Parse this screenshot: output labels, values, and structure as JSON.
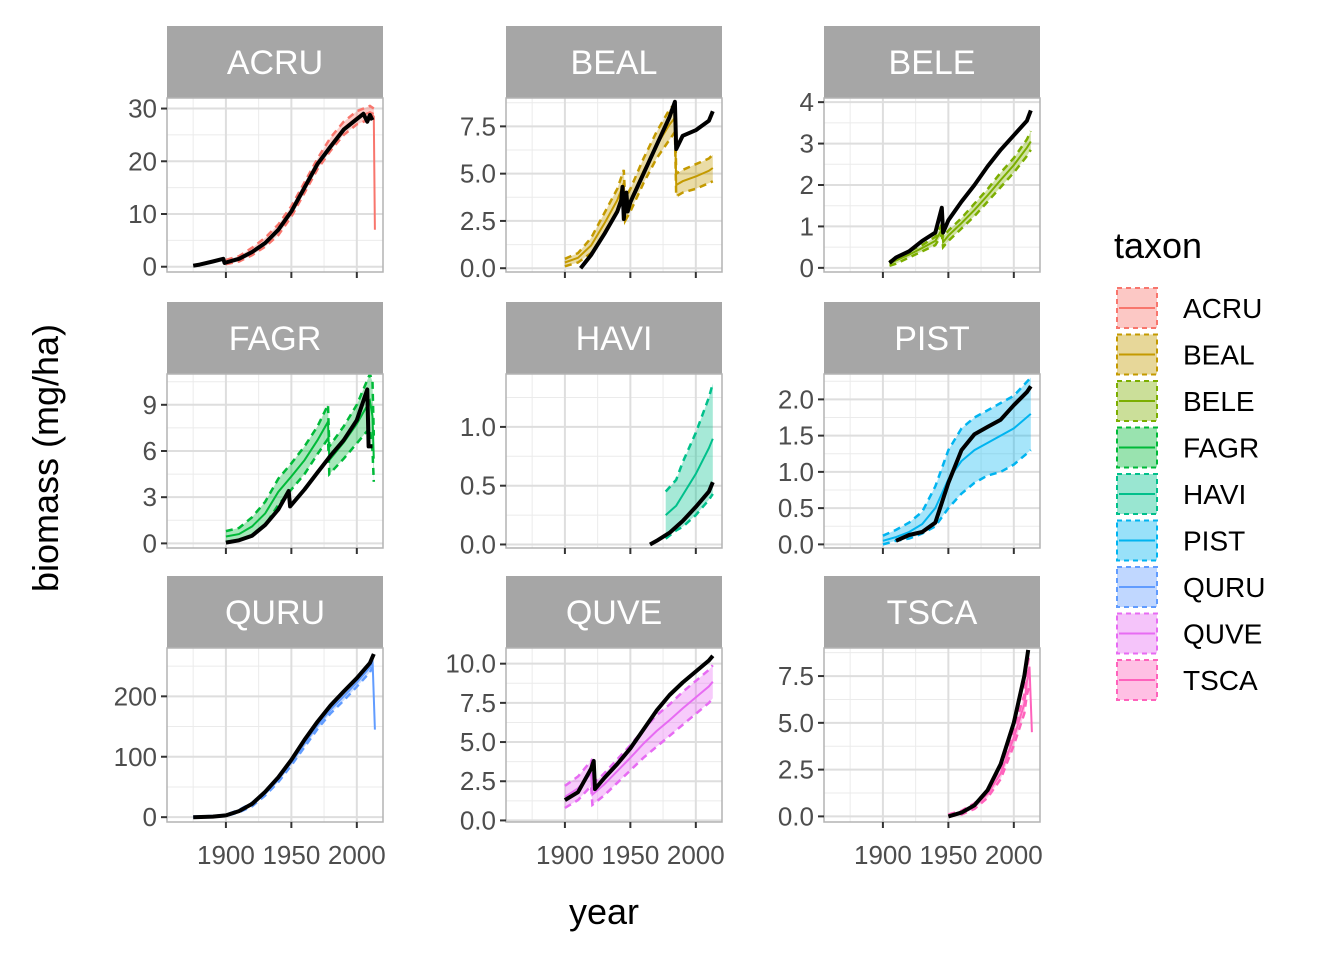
{
  "chart_data": {
    "type": "line",
    "xlabel": "year",
    "ylabel": "biomass (mg/ha)",
    "legend_title": "taxon",
    "legend_position": "right",
    "grid": true,
    "x_ticks": [
      1900,
      1950,
      2000
    ],
    "x_tick_labels": [
      "1900",
      "1950",
      "2000"
    ],
    "xlim": [
      1855,
      2020
    ],
    "panels": [
      {
        "taxon": "ACRU",
        "color": "#F8766D",
        "ylim": [
          -1,
          32
        ],
        "y_ticks": [
          0,
          10,
          20,
          30
        ],
        "y_tick_labels": [
          "0",
          "10",
          "20",
          "30"
        ],
        "ribbon": {
          "x": [
            1900,
            1910,
            1920,
            1930,
            1940,
            1950,
            1960,
            1970,
            1980,
            1990,
            2000,
            2010,
            2013
          ],
          "lower": [
            0.5,
            1.0,
            2.2,
            3.8,
            6.0,
            9.5,
            14.0,
            18.5,
            22.0,
            25.0,
            27.0,
            28.0,
            28.0
          ],
          "upper": [
            1.3,
            2.0,
            3.6,
            5.5,
            8.0,
            11.5,
            16.0,
            20.5,
            24.5,
            27.5,
            29.5,
            30.5,
            30.0
          ],
          "mean": [
            0.9,
            1.5,
            2.9,
            4.6,
            7.0,
            10.5,
            15.0,
            19.5,
            23.0,
            26.3,
            28.3,
            29.3,
            29.0
          ]
        },
        "tail": {
          "x": [
            2011,
            2013,
            2013.8
          ],
          "y": [
            29.0,
            28.5,
            7.0
          ]
        },
        "observed": {
          "x": [
            1875,
            1880,
            1890,
            1898,
            1899,
            1900,
            1910,
            1920,
            1930,
            1940,
            1950,
            1960,
            1970,
            1980,
            1990,
            2000,
            2005,
            2008,
            2010,
            2012
          ],
          "y": [
            0.2,
            0.4,
            1.0,
            1.5,
            0.7,
            0.8,
            1.5,
            2.8,
            4.5,
            7.0,
            10.5,
            15.0,
            19.5,
            22.8,
            26.0,
            28.0,
            29.0,
            27.5,
            28.8,
            27.8
          ]
        }
      },
      {
        "taxon": "BEAL",
        "color": "#C49A00",
        "ylim": [
          -0.2,
          9.0
        ],
        "y_ticks": [
          0.0,
          2.5,
          5.0,
          7.5
        ],
        "y_tick_labels": [
          "0.0",
          "2.5",
          "5.0",
          "7.5"
        ],
        "ribbon": {
          "x": [
            1900,
            1910,
            1920,
            1930,
            1940,
            1945,
            1946,
            1950,
            1960,
            1970,
            1980,
            1984,
            1985,
            1990,
            2000,
            2010,
            2013
          ],
          "lower": [
            0.1,
            0.3,
            0.8,
            1.8,
            3.0,
            3.8,
            2.5,
            3.0,
            4.5,
            5.8,
            6.8,
            7.2,
            3.8,
            4.0,
            4.2,
            4.5,
            4.6
          ],
          "upper": [
            0.5,
            0.8,
            1.6,
            2.9,
            4.2,
            5.2,
            3.7,
            4.2,
            5.8,
            7.2,
            8.4,
            8.7,
            5.0,
            5.2,
            5.5,
            5.8,
            6.0
          ],
          "mean": [
            0.3,
            0.55,
            1.2,
            2.35,
            3.6,
            4.5,
            3.1,
            3.6,
            5.15,
            6.5,
            7.6,
            7.95,
            4.4,
            4.6,
            4.85,
            5.15,
            5.3
          ]
        },
        "tail": null,
        "observed": {
          "x": [
            1912,
            1920,
            1930,
            1940,
            1943,
            1944,
            1945,
            1947,
            1948,
            1950,
            1960,
            1970,
            1980,
            1984,
            1985,
            1990,
            2000,
            2010,
            2013
          ],
          "y": [
            0.0,
            0.7,
            1.8,
            3.0,
            3.6,
            4.3,
            2.6,
            4.0,
            3.0,
            3.5,
            5.0,
            6.5,
            8.0,
            8.8,
            6.3,
            7.0,
            7.3,
            7.8,
            8.3
          ]
        }
      },
      {
        "taxon": "BELE",
        "color": "#7CAE00",
        "ylim": [
          -0.1,
          4.1
        ],
        "y_ticks": [
          0,
          1,
          2,
          3,
          4
        ],
        "y_tick_labels": [
          "0",
          "1",
          "2",
          "3",
          "4"
        ],
        "ribbon": {
          "x": [
            1905,
            1910,
            1920,
            1930,
            1940,
            1945,
            1946,
            1950,
            1960,
            1970,
            1980,
            1990,
            2000,
            2010,
            2013
          ],
          "lower": [
            0.05,
            0.1,
            0.25,
            0.4,
            0.55,
            0.8,
            0.5,
            0.65,
            0.95,
            1.25,
            1.6,
            1.95,
            2.3,
            2.7,
            2.85
          ],
          "upper": [
            0.15,
            0.25,
            0.4,
            0.55,
            0.75,
            1.05,
            0.75,
            0.9,
            1.2,
            1.55,
            1.9,
            2.3,
            2.65,
            3.1,
            3.3
          ],
          "mean": [
            0.1,
            0.18,
            0.32,
            0.48,
            0.65,
            0.92,
            0.62,
            0.78,
            1.08,
            1.4,
            1.75,
            2.12,
            2.48,
            2.9,
            3.05
          ]
        },
        "tail": null,
        "observed": {
          "x": [
            1905,
            1910,
            1920,
            1930,
            1940,
            1945,
            1946,
            1950,
            1960,
            1970,
            1980,
            1990,
            2000,
            2010,
            2013
          ],
          "y": [
            0.12,
            0.25,
            0.4,
            0.65,
            0.85,
            1.45,
            0.85,
            1.15,
            1.6,
            2.0,
            2.45,
            2.85,
            3.2,
            3.55,
            3.8
          ]
        }
      },
      {
        "taxon": "FAGR",
        "color": "#00BA38",
        "ylim": [
          -0.3,
          11.0
        ],
        "y_ticks": [
          0,
          3,
          6,
          9
        ],
        "y_tick_labels": [
          "0",
          "3",
          "6",
          "9"
        ],
        "ribbon": {
          "x": [
            1900,
            1910,
            1920,
            1930,
            1940,
            1950,
            1960,
            1970,
            1978,
            1979,
            1990,
            2000,
            2010,
            2012,
            2013
          ],
          "lower": [
            0.1,
            0.2,
            0.5,
            1.2,
            2.5,
            3.5,
            4.5,
            5.8,
            6.8,
            4.5,
            5.5,
            6.5,
            7.5,
            6.0,
            4.0
          ],
          "upper": [
            0.8,
            1.0,
            1.7,
            2.7,
            4.2,
            5.2,
            6.3,
            7.6,
            9.0,
            6.3,
            7.6,
            9.0,
            11.0,
            10.5,
            7.0
          ],
          "mean": [
            0.45,
            0.6,
            1.1,
            1.95,
            3.35,
            4.35,
            5.4,
            6.7,
            7.9,
            5.4,
            6.55,
            7.75,
            9.25,
            8.25,
            5.5
          ]
        },
        "tail": null,
        "observed": {
          "x": [
            1900,
            1910,
            1920,
            1930,
            1940,
            1948,
            1949,
            1960,
            1970,
            1980,
            1990,
            2000,
            2008,
            2009,
            2012
          ],
          "y": [
            0.05,
            0.2,
            0.5,
            1.2,
            2.2,
            3.4,
            2.4,
            3.5,
            4.6,
            5.7,
            6.7,
            8.0,
            10.0,
            6.3,
            6.3
          ]
        }
      },
      {
        "taxon": "HAVI",
        "color": "#00C08B",
        "ylim": [
          -0.03,
          1.45
        ],
        "y_ticks": [
          0.0,
          0.5,
          1.0
        ],
        "y_tick_labels": [
          "0.0",
          "0.5",
          "1.0"
        ],
        "ribbon": {
          "x": [
            1977,
            1985,
            1990,
            2000,
            2010,
            2013
          ],
          "lower": [
            0.05,
            0.12,
            0.15,
            0.25,
            0.38,
            0.43
          ],
          "upper": [
            0.45,
            0.55,
            0.7,
            0.95,
            1.25,
            1.37
          ],
          "mean": [
            0.25,
            0.33,
            0.42,
            0.6,
            0.82,
            0.9
          ]
        },
        "tail": null,
        "observed": {
          "x": [
            1965,
            1970,
            1980,
            1990,
            2000,
            2010,
            2013
          ],
          "y": [
            0.0,
            0.03,
            0.1,
            0.2,
            0.32,
            0.45,
            0.53
          ]
        }
      },
      {
        "taxon": "PIST",
        "color": "#00B4F0",
        "ylim": [
          -0.05,
          2.35
        ],
        "y_ticks": [
          0.0,
          0.5,
          1.0,
          1.5,
          2.0
        ],
        "y_tick_labels": [
          "0.0",
          "0.5",
          "1.0",
          "1.5",
          "2.0"
        ],
        "ribbon": {
          "x": [
            1900,
            1910,
            1920,
            1930,
            1940,
            1950,
            1960,
            1970,
            1980,
            1990,
            2000,
            2013
          ],
          "lower": [
            0.0,
            0.05,
            0.08,
            0.15,
            0.25,
            0.5,
            0.7,
            0.85,
            0.95,
            1.0,
            1.1,
            1.3
          ],
          "upper": [
            0.12,
            0.2,
            0.3,
            0.45,
            0.8,
            1.3,
            1.6,
            1.75,
            1.85,
            1.95,
            2.05,
            2.3
          ],
          "mean": [
            0.05,
            0.1,
            0.17,
            0.28,
            0.5,
            0.9,
            1.15,
            1.3,
            1.4,
            1.5,
            1.6,
            1.8
          ]
        },
        "tail": null,
        "observed": {
          "x": [
            1910,
            1920,
            1930,
            1940,
            1950,
            1960,
            1970,
            1980,
            1990,
            2000,
            2010,
            2013
          ],
          "y": [
            0.05,
            0.13,
            0.17,
            0.3,
            0.85,
            1.3,
            1.52,
            1.62,
            1.72,
            1.92,
            2.1,
            2.18
          ]
        }
      },
      {
        "taxon": "QURU",
        "color": "#619CFF",
        "ylim": [
          -8,
          280
        ],
        "y_ticks": [
          0,
          100,
          200
        ],
        "y_tick_labels": [
          "0",
          "100",
          "200"
        ],
        "ribbon": {
          "x": [
            1875,
            1890,
            1900,
            1910,
            1920,
            1930,
            1940,
            1950,
            1960,
            1970,
            1980,
            1990,
            2000,
            2010,
            2012
          ],
          "lower": [
            0,
            0.5,
            2,
            8,
            18,
            36,
            58,
            86,
            116,
            146,
            172,
            193,
            216,
            240,
            248
          ],
          "upper": [
            1,
            2,
            4,
            12,
            24,
            43,
            67,
            97,
            128,
            158,
            185,
            207,
            230,
            256,
            266
          ],
          "mean": [
            0.5,
            1.2,
            3,
            10,
            21,
            39,
            62,
            91,
            122,
            152,
            178,
            200,
            223,
            248,
            257
          ]
        },
        "tail": {
          "x": [
            2011,
            2012,
            2013.8
          ],
          "y": [
            260,
            262,
            145
          ]
        },
        "observed": {
          "x": [
            1875,
            1890,
            1900,
            1910,
            1920,
            1930,
            1940,
            1950,
            1960,
            1970,
            1980,
            1990,
            2000,
            2010,
            2013
          ],
          "y": [
            0,
            1,
            3,
            10,
            22,
            42,
            66,
            95,
            128,
            158,
            185,
            208,
            230,
            255,
            270
          ]
        }
      },
      {
        "taxon": "QUVE",
        "color": "#E76BF3",
        "ylim": [
          -0.1,
          11.0
        ],
        "y_ticks": [
          0.0,
          2.5,
          5.0,
          7.5,
          10.0
        ],
        "y_tick_labels": [
          "0.0",
          "2.5",
          "5.0",
          "7.5",
          "10.0"
        ],
        "ribbon": {
          "x": [
            1900,
            1910,
            1920,
            1921,
            1930,
            1940,
            1950,
            1960,
            1970,
            1980,
            1990,
            2000,
            2010,
            2013
          ],
          "lower": [
            0.8,
            1.3,
            2.2,
            1.0,
            1.6,
            2.4,
            3.2,
            4.0,
            4.7,
            5.4,
            6.1,
            6.8,
            7.5,
            7.8
          ],
          "upper": [
            2.2,
            2.8,
            3.8,
            2.3,
            3.0,
            3.9,
            4.8,
            5.8,
            6.7,
            7.4,
            8.2,
            8.9,
            9.6,
            9.9
          ],
          "mean": [
            1.5,
            2.05,
            3.0,
            1.65,
            2.3,
            3.15,
            4.0,
            4.9,
            5.7,
            6.4,
            7.15,
            7.85,
            8.55,
            8.85
          ]
        },
        "tail": null,
        "observed": {
          "x": [
            1900,
            1910,
            1920,
            1922,
            1923,
            1930,
            1940,
            1950,
            1960,
            1970,
            1980,
            1990,
            2000,
            2010,
            2013
          ],
          "y": [
            1.3,
            1.8,
            3.3,
            3.8,
            2.0,
            2.7,
            3.6,
            4.6,
            5.8,
            7.0,
            8.0,
            8.8,
            9.5,
            10.2,
            10.5
          ]
        }
      },
      {
        "taxon": "TSCA",
        "color": "#FF62BC",
        "ylim": [
          -0.3,
          9.0
        ],
        "y_ticks": [
          0.0,
          2.5,
          5.0,
          7.5
        ],
        "y_tick_labels": [
          "0.0",
          "2.5",
          "5.0",
          "7.5"
        ],
        "ribbon": {
          "x": [
            1950,
            1960,
            1970,
            1980,
            1990,
            2000,
            2008,
            2010,
            2012
          ],
          "lower": [
            0.0,
            0.1,
            0.4,
            1.0,
            2.0,
            3.8,
            5.5,
            6.5,
            7.0
          ],
          "upper": [
            0.1,
            0.3,
            0.7,
            1.4,
            2.6,
            4.6,
            6.5,
            8.0,
            8.6
          ],
          "mean": [
            0.05,
            0.2,
            0.55,
            1.2,
            2.3,
            4.2,
            6.0,
            7.2,
            7.8
          ]
        },
        "tail": {
          "x": [
            2011,
            2012,
            2013.8
          ],
          "y": [
            7.6,
            8.0,
            4.5
          ]
        },
        "observed": {
          "x": [
            1950,
            1960,
            1970,
            1980,
            1990,
            2000,
            2008,
            2011
          ],
          "y": [
            0.0,
            0.2,
            0.6,
            1.4,
            2.8,
            5.0,
            7.5,
            8.9
          ]
        }
      }
    ]
  }
}
